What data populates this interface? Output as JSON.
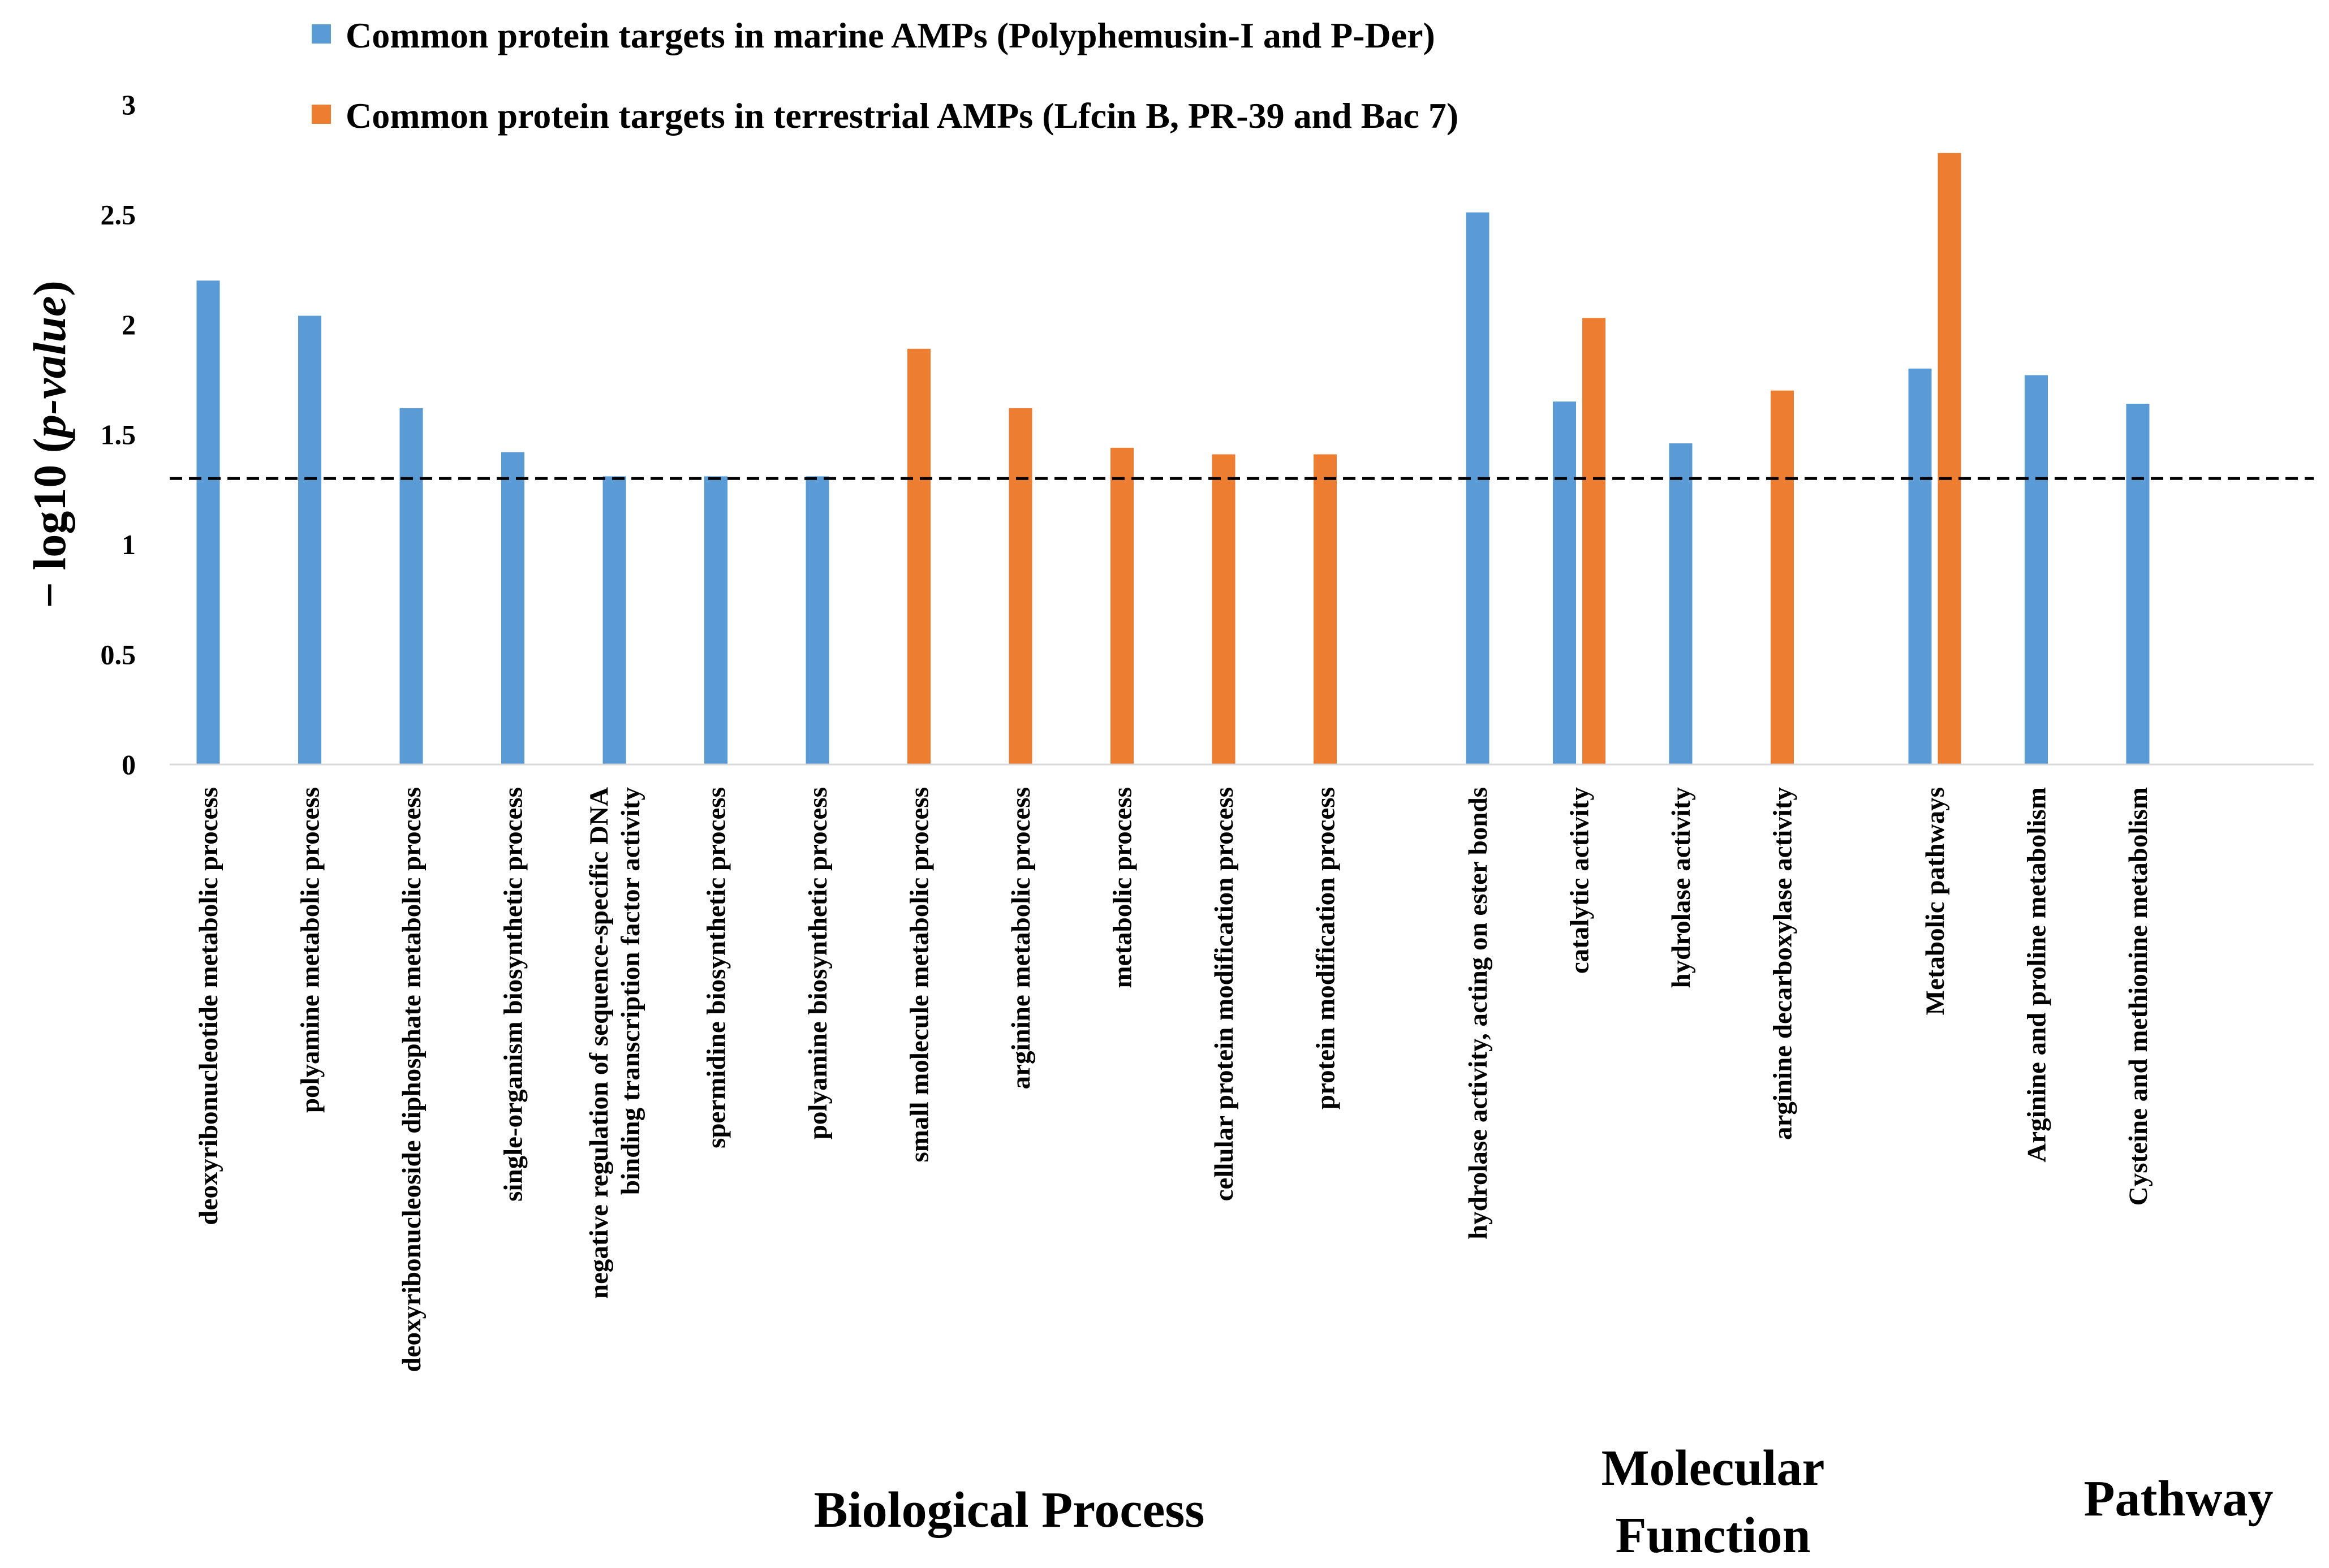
{
  "chart_data": {
    "type": "bar",
    "ylabel_prefix": "− log10 (",
    "ylabel_italic": "p-value",
    "ylabel_suffix": ")",
    "ylim": [
      0,
      3
    ],
    "yticks": [
      "0",
      "0.5",
      "1",
      "1.5",
      "2",
      "2.5",
      "3"
    ],
    "threshold": 1.3,
    "series": [
      {
        "name": "Common protein targets in marine AMPs (Polyphemusin-I and P-Der)",
        "color": "#5b9bd5",
        "values": [
          2.2,
          2.04,
          1.62,
          1.42,
          1.31,
          1.31,
          1.31,
          null,
          null,
          null,
          null,
          null,
          2.51,
          1.65,
          1.46,
          null,
          1.8,
          1.77,
          1.64
        ]
      },
      {
        "name": "Common protein targets in terrestrial AMPs (Lfcin B, PR-39 and Bac 7)",
        "color": "#ed7d31",
        "values": [
          null,
          null,
          null,
          null,
          null,
          null,
          null,
          1.89,
          1.62,
          1.44,
          1.41,
          1.41,
          null,
          2.03,
          null,
          1.7,
          2.78,
          null,
          null
        ]
      }
    ],
    "categories": [
      {
        "lines": [
          "deoxyribonucleotide metabolic process"
        ]
      },
      {
        "lines": [
          "polyamine metabolic process"
        ]
      },
      {
        "lines": [
          "deoxyribonucleoside diphosphate metabolic process"
        ]
      },
      {
        "lines": [
          "single-organism biosynthetic process"
        ]
      },
      {
        "lines": [
          "negative regulation of sequence-specific DNA",
          "binding transcription factor activity"
        ]
      },
      {
        "lines": [
          "spermidine biosynthetic process"
        ]
      },
      {
        "lines": [
          "polyamine biosynthetic process"
        ]
      },
      {
        "lines": [
          "small molecule metabolic process"
        ]
      },
      {
        "lines": [
          "arginine metabolic process"
        ]
      },
      {
        "lines": [
          "metabolic process"
        ]
      },
      {
        "lines": [
          "cellular protein modification process"
        ]
      },
      {
        "lines": [
          "protein modification process"
        ]
      },
      {
        "lines": [
          "hydrolase activity, acting on ester bonds"
        ]
      },
      {
        "lines": [
          "catalytic activity"
        ]
      },
      {
        "lines": [
          "hydrolase activity"
        ]
      },
      {
        "lines": [
          "arginine decarboxylase activity"
        ]
      },
      {
        "lines": [
          "Metabolic pathways"
        ]
      },
      {
        "lines": [
          "Arginine and proline metabolism"
        ]
      },
      {
        "lines": [
          "Cysteine and methionine metabolism"
        ]
      }
    ],
    "groups": [
      {
        "lines": [
          "Biological Process"
        ]
      },
      {
        "lines": [
          "Molecular",
          "Function"
        ]
      },
      {
        "lines": [
          "Pathway"
        ]
      }
    ]
  }
}
